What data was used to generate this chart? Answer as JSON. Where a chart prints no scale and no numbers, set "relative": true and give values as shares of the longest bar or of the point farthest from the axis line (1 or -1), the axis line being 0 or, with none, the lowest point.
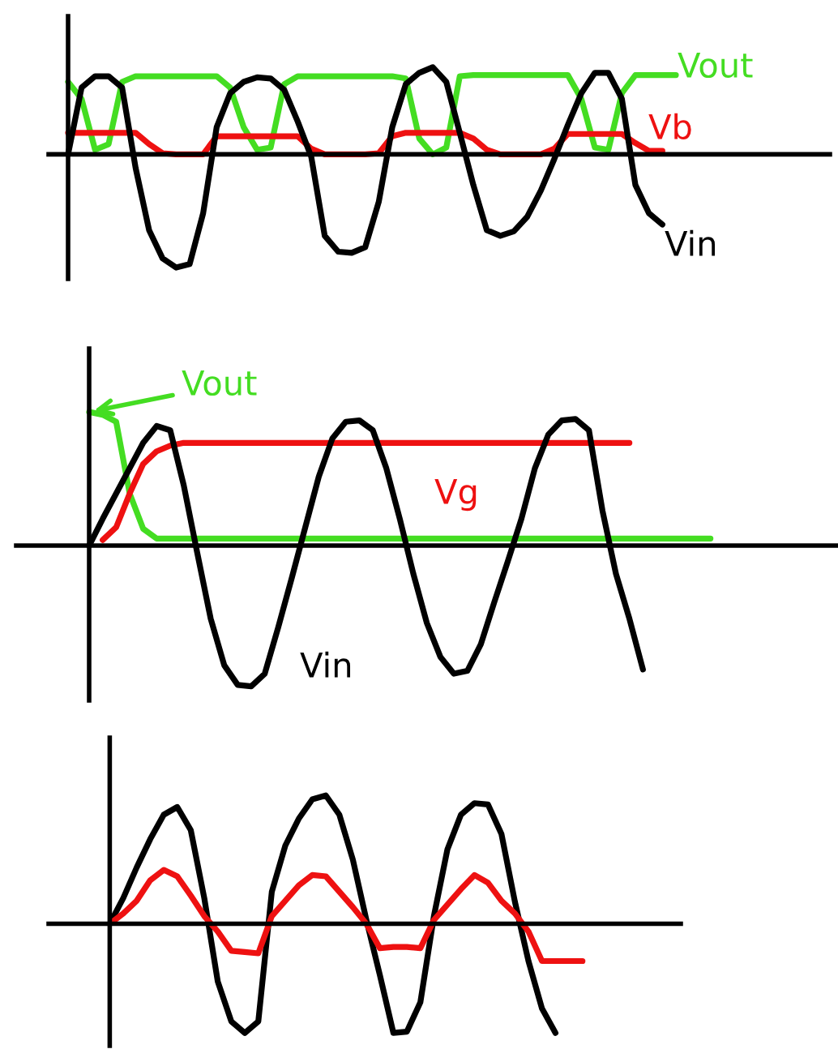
{
  "chart_data": [
    {
      "type": "line",
      "relative": true,
      "categories": [
        null,
        null,
        null,
        null,
        null,
        null,
        null,
        null,
        null,
        null,
        null,
        null,
        null,
        null,
        null,
        null,
        null,
        null,
        null,
        null,
        null,
        null,
        null,
        null,
        null,
        null,
        null,
        null,
        null,
        null,
        null,
        null,
        null,
        null,
        null,
        null,
        null,
        null,
        null,
        null,
        null,
        null,
        null,
        null,
        null,
        null
      ],
      "series": [
        {
          "name": "Vout",
          "color": "#44dd22",
          "values": [
            0.64,
            0.49,
            0.04,
            0.09,
            0.64,
            0.69,
            0.69,
            0.69,
            0.69,
            0.69,
            0.69,
            0.69,
            0.59,
            0.24,
            0.04,
            0.06,
            0.62,
            0.69,
            0.69,
            0.69,
            0.69,
            0.69,
            0.69,
            0.69,
            0.69,
            0.67,
            0.14,
            0,
            0.06,
            0.69,
            0.7,
            0.7,
            0.7,
            0.7,
            0.7,
            0.7,
            0.7,
            0.7,
            0.49,
            0.06,
            0.04,
            0.54,
            0.7,
            0.7,
            0.7,
            0.7
          ]
        },
        {
          "name": "Vb",
          "color": "#ee1111",
          "values": [
            0.19,
            0.19,
            0.19,
            0.19,
            0.19,
            0.19,
            0.09,
            0.01,
            0,
            0,
            0,
            0.16,
            0.16,
            0.16,
            0.16,
            0.16,
            0.16,
            0.16,
            0.05,
            0,
            0,
            0,
            0,
            0.01,
            0.16,
            0.19,
            0.19,
            0.19,
            0.19,
            0.19,
            0.14,
            0.04,
            0,
            0,
            0,
            0,
            0.05,
            0.18,
            0.18,
            0.18,
            0.18,
            0.18,
            0.1,
            0.03,
            0.03,
            null
          ]
        },
        {
          "name": "Vin",
          "color": "#000000",
          "values": [
            0,
            0.59,
            0.69,
            0.69,
            0.59,
            -0.12,
            -0.67,
            -0.92,
            -1,
            -0.97,
            -0.52,
            0.24,
            0.54,
            0.64,
            0.68,
            0.67,
            0.57,
            0.29,
            -0.02,
            -0.72,
            -0.86,
            -0.87,
            -0.82,
            -0.42,
            0.24,
            0.62,
            0.72,
            0.77,
            0.64,
            0.19,
            -0.27,
            -0.67,
            -0.72,
            -0.68,
            -0.55,
            -0.32,
            -0.04,
            0.26,
            0.54,
            0.72,
            0.72,
            0.49,
            -0.27,
            -0.52,
            -0.62,
            null
          ]
        }
      ]
    },
    {
      "type": "line",
      "relative": true,
      "categories": [
        null,
        null,
        null,
        null,
        null,
        null,
        null,
        null,
        null,
        null,
        null,
        null,
        null,
        null,
        null,
        null,
        null,
        null,
        null,
        null,
        null,
        null,
        null,
        null,
        null,
        null,
        null,
        null,
        null,
        null,
        null,
        null,
        null,
        null,
        null,
        null,
        null,
        null,
        null,
        null,
        null,
        null,
        null,
        null,
        null,
        null,
        null
      ],
      "series": [
        {
          "name": "Vout",
          "color": "#44dd22",
          "values": [
            0.95,
            0.93,
            0.88,
            0.37,
            0.12,
            0.05,
            0.05,
            0.05,
            0.05,
            0.05,
            0.05,
            0.05,
            0.05,
            0.05,
            0.05,
            0.05,
            0.05,
            0.05,
            0.05,
            0.05,
            0.05,
            0.05,
            0.05,
            0.05,
            0.05,
            0.05,
            0.05,
            0.05,
            0.05,
            0.05,
            0.05,
            0.05,
            0.05,
            0.05,
            0.05,
            0.05,
            0.05,
            0.05,
            0.05,
            0.05,
            0.05,
            0.05,
            0.05,
            0.05,
            0.05,
            0.05,
            0.05
          ]
        },
        {
          "name": "Vg",
          "color": "#ee1111",
          "values": [
            null,
            0.04,
            0.13,
            0.37,
            0.58,
            0.67,
            0.71,
            0.73,
            0.73,
            0.73,
            0.73,
            0.73,
            0.73,
            0.73,
            0.73,
            0.73,
            0.73,
            0.73,
            0.73,
            0.73,
            0.73,
            0.73,
            0.73,
            0.73,
            0.73,
            0.73,
            0.73,
            0.73,
            0.73,
            0.73,
            0.73,
            0.73,
            0.73,
            0.73,
            0.73,
            0.73,
            0.73,
            0.73,
            0.73,
            0.73,
            0.73,
            null,
            null,
            null,
            null,
            null,
            null
          ]
        },
        {
          "name": "Vin",
          "color": "#000000",
          "values": [
            0,
            0.19,
            0.37,
            0.55,
            0.73,
            0.85,
            0.82,
            0.43,
            -0.05,
            -0.52,
            -0.85,
            -0.99,
            -1,
            -0.91,
            -0.58,
            -0.23,
            0.13,
            0.49,
            0.76,
            0.88,
            0.89,
            0.82,
            0.55,
            0.19,
            -0.2,
            -0.55,
            -0.79,
            -0.91,
            -0.89,
            -0.7,
            -0.4,
            -0.11,
            0.19,
            0.55,
            0.79,
            0.89,
            0.9,
            0.82,
            0.25,
            -0.2,
            -0.52,
            -0.88,
            null,
            null,
            null,
            null,
            null
          ]
        }
      ]
    },
    {
      "type": "line",
      "relative": true,
      "categories": [
        null,
        null,
        null,
        null,
        null,
        null,
        null,
        null,
        null,
        null,
        null,
        null,
        null,
        null,
        null,
        null,
        null,
        null,
        null,
        null,
        null,
        null,
        null,
        null,
        null,
        null,
        null,
        null,
        null,
        null,
        null,
        null,
        null,
        null,
        null,
        null
      ],
      "series": [
        {
          "color": "#000000",
          "values": [
            0,
            0.2,
            0.44,
            0.66,
            0.85,
            0.91,
            0.73,
            0.2,
            -0.45,
            -0.76,
            -0.85,
            -0.76,
            0.25,
            0.61,
            0.82,
            0.97,
            1,
            0.85,
            0.5,
            0.03,
            -0.4,
            -0.85,
            -0.84,
            -0.61,
            0.06,
            0.58,
            0.85,
            0.94,
            0.93,
            0.7,
            0.17,
            -0.29,
            -0.66,
            -0.85,
            null,
            null
          ]
        },
        {
          "color": "#ee1111",
          "values": [
            0,
            0.08,
            0.18,
            0.34,
            0.42,
            0.37,
            0.22,
            0.06,
            -0.06,
            -0.21,
            -0.22,
            -0.23,
            0.06,
            0.18,
            0.3,
            0.38,
            0.37,
            0.25,
            0.13,
            0,
            -0.19,
            -0.18,
            -0.18,
            -0.19,
            0.03,
            0.15,
            0.27,
            0.38,
            0.32,
            0.18,
            0.08,
            -0.06,
            -0.29,
            -0.29,
            -0.29,
            -0.29
          ]
        }
      ]
    }
  ]
}
